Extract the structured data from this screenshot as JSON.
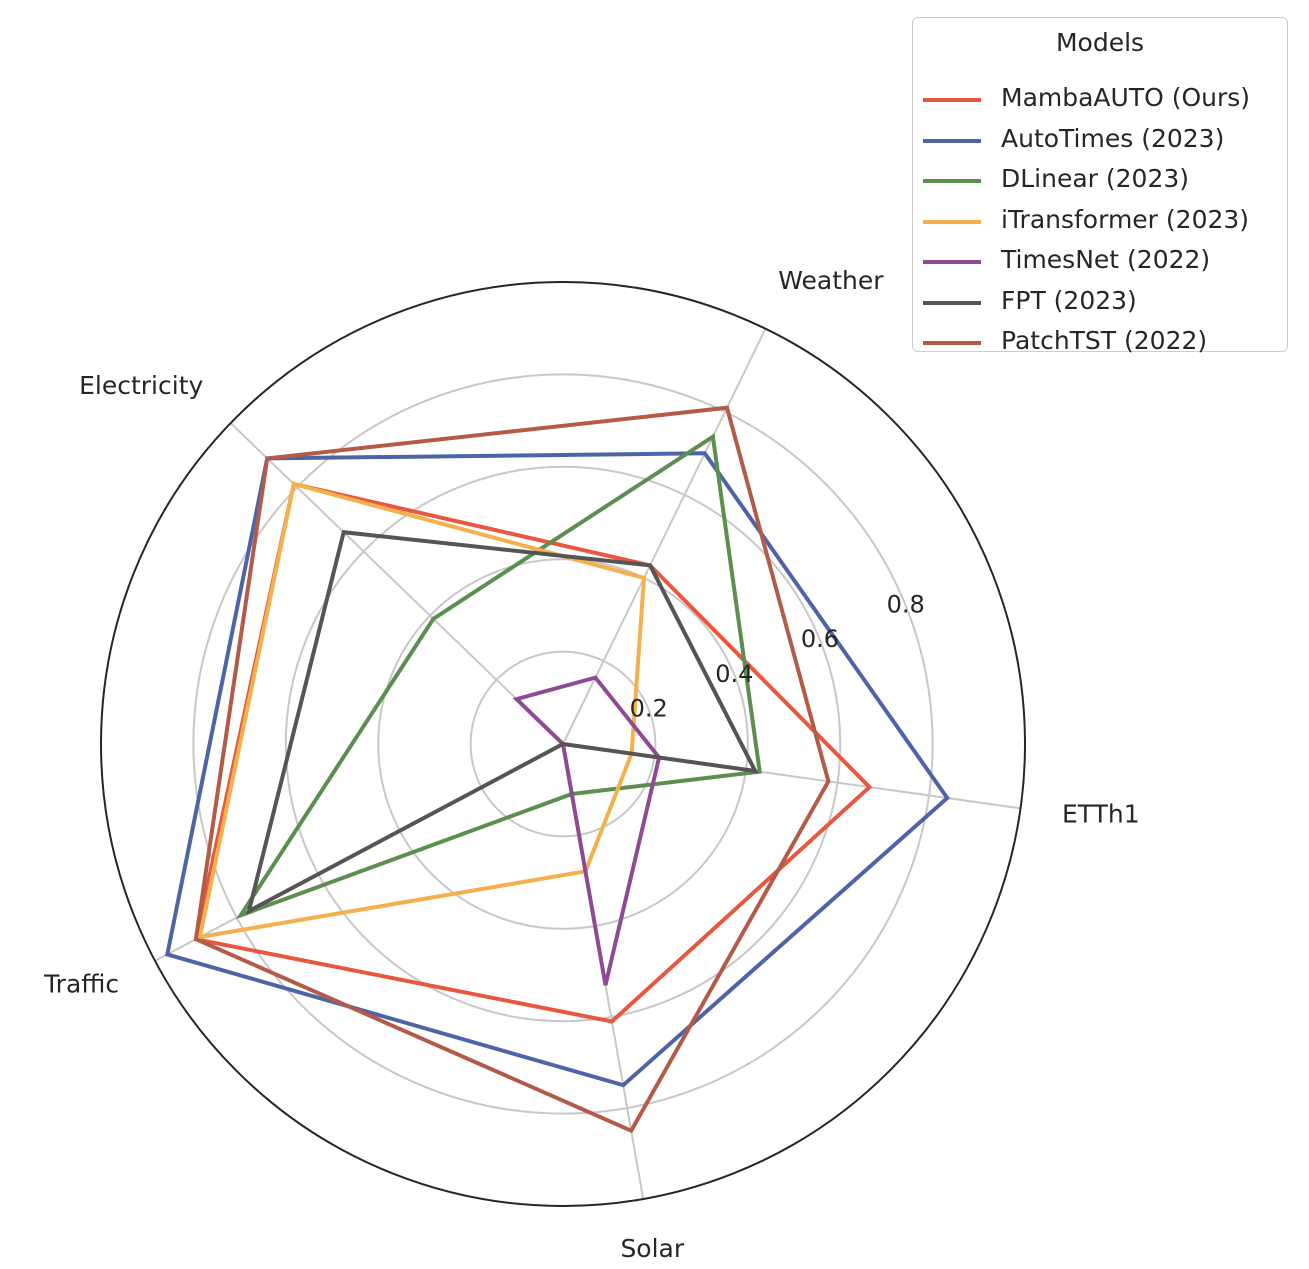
{
  "chart_data": {
    "type": "radar",
    "axes": [
      "ETTh1",
      "Weather",
      "Electricity",
      "Traffic",
      "Solar"
    ],
    "rlim": [
      0,
      1.0
    ],
    "radial_ticks": [
      0.2,
      0.4,
      0.6,
      0.8
    ],
    "radial_tick_labels": [
      "0.2",
      "0.4",
      "0.6",
      "0.8"
    ],
    "grid": true,
    "legend": {
      "title": "Models",
      "placement": "top-right"
    },
    "series": [
      {
        "name": "MambaAUTO (Ours)",
        "color": "#e8583f",
        "values": [
          0.67,
          0.43,
          0.81,
          0.9,
          0.61
        ]
      },
      {
        "name": "AutoTimes (2023)",
        "color": "#4e64a8",
        "values": [
          0.84,
          0.7,
          0.89,
          0.97,
          0.75
        ]
      },
      {
        "name": "DLinear (2023)",
        "color": "#5a8f4f",
        "values": [
          0.43,
          0.74,
          0.39,
          0.79,
          0.11
        ]
      },
      {
        "name": "iTransformer (2023)",
        "color": "#f2b14c",
        "values": [
          0.15,
          0.4,
          0.81,
          0.89,
          0.28
        ]
      },
      {
        "name": "TimesNet (2022)",
        "color": "#8e4a93",
        "values": [
          0.21,
          0.16,
          0.14,
          0.0,
          0.53
        ]
      },
      {
        "name": "FPT (2023)",
        "color": "#555555",
        "values": [
          0.42,
          0.43,
          0.66,
          0.77,
          0.0
        ]
      },
      {
        "name": "PatchTST (2022)",
        "color": "#b35b46",
        "values": [
          0.58,
          0.81,
          0.89,
          0.9,
          0.85
        ]
      }
    ]
  }
}
